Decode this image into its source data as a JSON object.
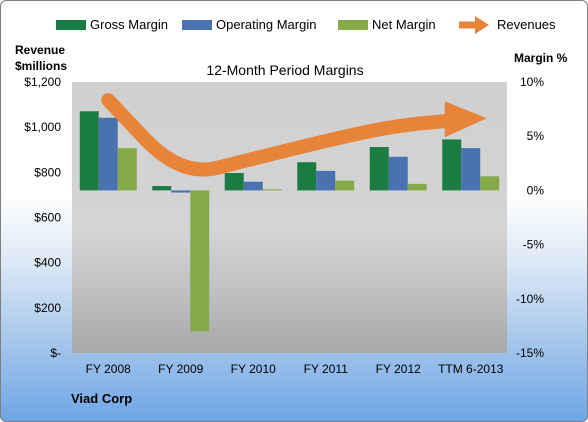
{
  "chart_data": {
    "type": "bar",
    "title": "12-Month Period Margins",
    "company": "Viad Corp",
    "left_axis": {
      "label_line1": "Revenue",
      "label_line2": "$millions",
      "ticks": [
        "$-",
        "$200",
        "$400",
        "$600",
        "$800",
        "$1,000",
        "$1,200"
      ],
      "ylim": [
        0,
        1200
      ]
    },
    "right_axis": {
      "label": "Margin %",
      "ticks": [
        "-15%",
        "-10%",
        "-5%",
        "0%",
        "5%",
        "10%"
      ],
      "ylim": [
        -15,
        10
      ]
    },
    "categories": [
      "FY 2008",
      "FY 2009",
      "FY 2010",
      "FY 2011",
      "FY 2012",
      "TTM 6-2013"
    ],
    "series": [
      {
        "name": "Gross Margin",
        "kind": "bar",
        "axis": "right",
        "color": "#1a7c43",
        "values": [
          7.3,
          0.4,
          1.6,
          2.6,
          4.0,
          4.7
        ]
      },
      {
        "name": "Operating Margin",
        "kind": "bar",
        "axis": "right",
        "color": "#4a72b0",
        "values": [
          6.7,
          -0.2,
          0.8,
          1.8,
          3.1,
          3.9
        ]
      },
      {
        "name": "Net Margin",
        "kind": "bar",
        "axis": "right",
        "color": "#86a94a",
        "values": [
          3.9,
          -13.0,
          0.1,
          0.9,
          0.6,
          1.3
        ]
      },
      {
        "name": "Revenues",
        "kind": "line",
        "axis": "left",
        "color": "#e8843a",
        "values": [
          1120,
          780,
          860,
          940,
          1010,
          1035
        ]
      }
    ],
    "legend_position": "top",
    "grid": false
  }
}
